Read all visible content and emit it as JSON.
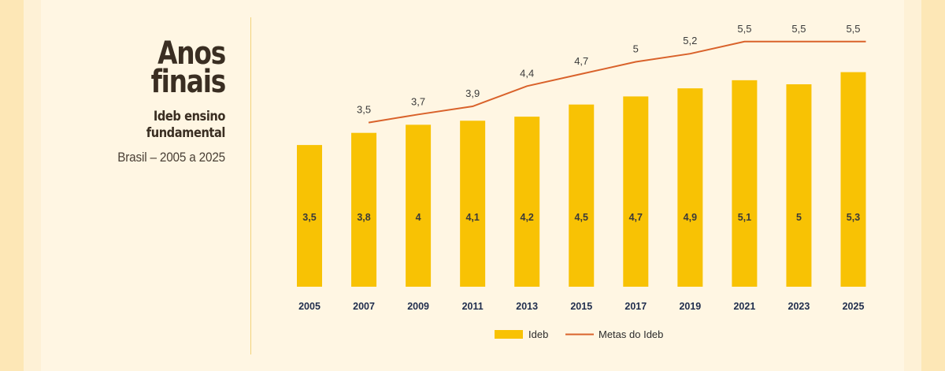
{
  "title": "Anos\nfinais",
  "subtitle": "Ideb ensino\nfundamental",
  "place": "Brasil – 2005 a 2025",
  "colors": {
    "bar": "#f8c204",
    "line": "#d9622b",
    "background": "#fff6e3"
  },
  "chart_data": {
    "type": "bar",
    "categories": [
      "2005",
      "2007",
      "2009",
      "2011",
      "2013",
      "2015",
      "2017",
      "2019",
      "2021",
      "2023",
      "2025"
    ],
    "series": [
      {
        "name": "Ideb",
        "type": "bar",
        "values": [
          3.5,
          3.8,
          4,
          4.1,
          4.2,
          4.5,
          4.7,
          4.9,
          5.1,
          5,
          5.3
        ],
        "labels": [
          "3,5",
          "3,8",
          "4",
          "4,1",
          "4,2",
          "4,5",
          "4,7",
          "4,9",
          "5,1",
          "5",
          "5,3"
        ]
      },
      {
        "name": "Metas do Ideb",
        "type": "line",
        "values": [
          null,
          3.5,
          3.7,
          3.9,
          4.4,
          4.7,
          5,
          5.2,
          5.5,
          5.5,
          5.5
        ],
        "labels": [
          "",
          "3,5",
          "3,7",
          "3,9",
          "4,4",
          "4,7",
          "5",
          "5,2",
          "5,5",
          "5,5",
          "5,5"
        ]
      }
    ],
    "legend": [
      "Ideb",
      "Metas do Ideb"
    ],
    "legend_position": "bottom-center",
    "grid": false
  }
}
